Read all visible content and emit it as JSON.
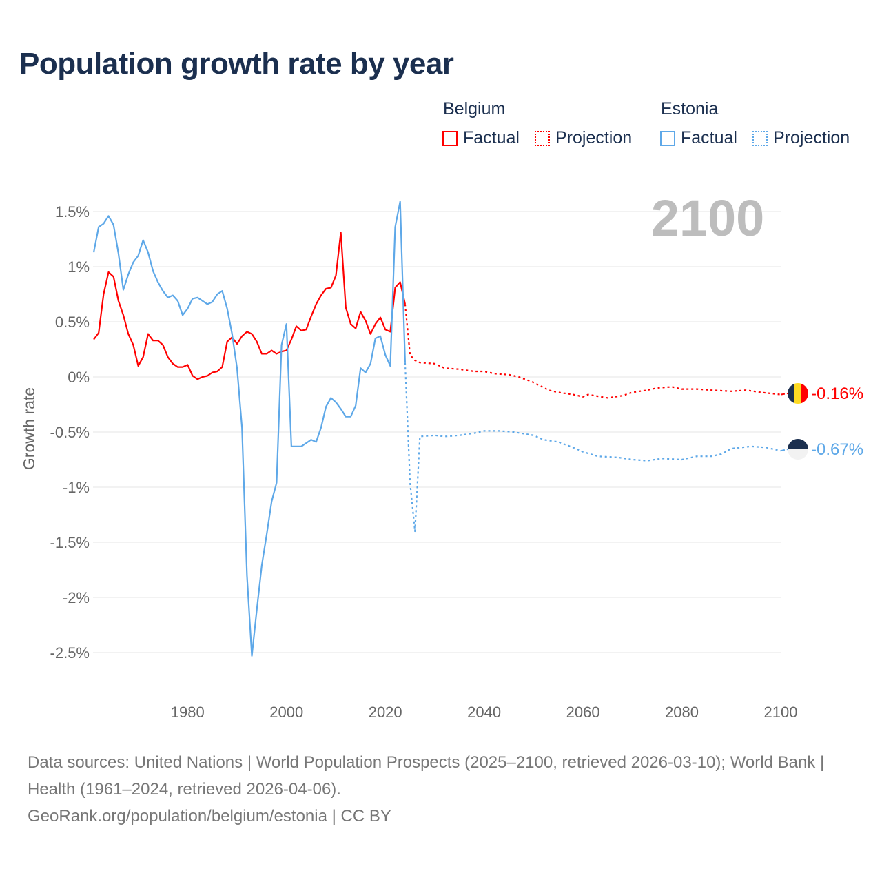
{
  "title": "Population growth rate by year",
  "legend": {
    "groups": [
      {
        "country": "Belgium",
        "factual": "Factual",
        "projection": "Projection",
        "color": "#ff0000"
      },
      {
        "country": "Estonia",
        "factual": "Factual",
        "projection": "Projection",
        "color": "#5ea8e8"
      }
    ]
  },
  "year_display": "2100",
  "end_labels": {
    "belgium": "-0.16%",
    "estonia": "-0.67%"
  },
  "footer": {
    "sources": "Data sources: United Nations | World Population Prospects (2025–2100, retrieved 2026-03-10); World Bank | Health (1961–2024, retrieved 2026-04-06).",
    "credit": "GeoRank.org/population/belgium/estonia | CC BY"
  },
  "chart_data": {
    "type": "line",
    "title": "Population growth rate by year",
    "xlabel": "",
    "ylabel": "Growth rate",
    "xlim": [
      1961,
      2100
    ],
    "ylim": [
      -2.5,
      1.5
    ],
    "xticks": [
      "1980",
      "2000",
      "2020",
      "2040",
      "2060",
      "2080",
      "2100"
    ],
    "xtick_values": [
      1980,
      2000,
      2020,
      2040,
      2060,
      2080,
      2100
    ],
    "yticks": [
      "1.5%",
      "1%",
      "0.5%",
      "0%",
      "-0.5%",
      "-1%",
      "-1.5%",
      "-2%",
      "-2.5%"
    ],
    "ytick_values": [
      1.5,
      1,
      0.5,
      0,
      -0.5,
      -1,
      -1.5,
      -2,
      -2.5
    ],
    "grid": true,
    "legend_position": "top-right",
    "series": [
      {
        "name": "Belgium Factual",
        "color": "#ff0000",
        "style": "solid",
        "x": [
          1961,
          1962,
          1963,
          1964,
          1965,
          1966,
          1967,
          1968,
          1969,
          1970,
          1971,
          1972,
          1973,
          1974,
          1975,
          1976,
          1977,
          1978,
          1979,
          1980,
          1981,
          1982,
          1983,
          1984,
          1985,
          1986,
          1987,
          1988,
          1989,
          1990,
          1991,
          1992,
          1993,
          1994,
          1995,
          1996,
          1997,
          1998,
          1999,
          2000,
          2001,
          2002,
          2003,
          2004,
          2005,
          2006,
          2007,
          2008,
          2009,
          2010,
          2011,
          2012,
          2013,
          2014,
          2015,
          2016,
          2017,
          2018,
          2019,
          2020,
          2021,
          2022,
          2023,
          2024
        ],
        "y": [
          0.34,
          0.4,
          0.75,
          0.95,
          0.91,
          0.69,
          0.56,
          0.39,
          0.29,
          0.1,
          0.18,
          0.39,
          0.33,
          0.33,
          0.29,
          0.18,
          0.12,
          0.09,
          0.09,
          0.11,
          0.01,
          -0.02,
          0.0,
          0.01,
          0.04,
          0.05,
          0.09,
          0.32,
          0.36,
          0.3,
          0.37,
          0.41,
          0.39,
          0.32,
          0.21,
          0.21,
          0.24,
          0.21,
          0.23,
          0.24,
          0.34,
          0.46,
          0.42,
          0.43,
          0.55,
          0.66,
          0.74,
          0.8,
          0.81,
          0.92,
          1.31,
          0.63,
          0.48,
          0.44,
          0.59,
          0.51,
          0.39,
          0.48,
          0.54,
          0.43,
          0.41,
          0.81,
          0.86,
          0.66
        ]
      },
      {
        "name": "Belgium Projection",
        "color": "#ff0000",
        "style": "dotted",
        "x": [
          2024,
          2025,
          2026,
          2027,
          2030,
          2032,
          2035,
          2038,
          2040,
          2042,
          2045,
          2047,
          2050,
          2053,
          2055,
          2058,
          2060,
          2061,
          2065,
          2068,
          2070,
          2073,
          2075,
          2078,
          2080,
          2083,
          2086,
          2090,
          2093,
          2096,
          2100
        ],
        "y": [
          0.66,
          0.2,
          0.15,
          0.13,
          0.12,
          0.08,
          0.07,
          0.05,
          0.05,
          0.03,
          0.02,
          0.0,
          -0.05,
          -0.12,
          -0.14,
          -0.16,
          -0.18,
          -0.16,
          -0.19,
          -0.17,
          -0.14,
          -0.12,
          -0.1,
          -0.09,
          -0.11,
          -0.11,
          -0.12,
          -0.13,
          -0.12,
          -0.14,
          -0.16
        ]
      },
      {
        "name": "Estonia Factual",
        "color": "#5ea8e8",
        "style": "solid",
        "x": [
          1961,
          1962,
          1963,
          1964,
          1965,
          1966,
          1967,
          1968,
          1969,
          1970,
          1971,
          1972,
          1973,
          1974,
          1975,
          1976,
          1977,
          1978,
          1979,
          1980,
          1981,
          1982,
          1983,
          1984,
          1985,
          1986,
          1987,
          1988,
          1989,
          1990,
          1991,
          1992,
          1993,
          1994,
          1995,
          1996,
          1997,
          1998,
          1999,
          2000,
          2001,
          2002,
          2003,
          2004,
          2005,
          2006,
          2007,
          2008,
          2009,
          2010,
          2011,
          2012,
          2013,
          2014,
          2015,
          2016,
          2017,
          2018,
          2019,
          2020,
          2021,
          2022,
          2023,
          2024
        ],
        "y": [
          1.13,
          1.36,
          1.39,
          1.46,
          1.38,
          1.12,
          0.79,
          0.93,
          1.04,
          1.1,
          1.24,
          1.13,
          0.96,
          0.86,
          0.78,
          0.72,
          0.74,
          0.69,
          0.56,
          0.62,
          0.71,
          0.72,
          0.69,
          0.66,
          0.68,
          0.75,
          0.78,
          0.62,
          0.39,
          0.08,
          -0.46,
          -1.8,
          -2.53,
          -2.11,
          -1.71,
          -1.43,
          -1.13,
          -0.96,
          0.29,
          0.48,
          -0.63,
          -0.63,
          -0.63,
          -0.6,
          -0.57,
          -0.59,
          -0.46,
          -0.27,
          -0.19,
          -0.23,
          -0.29,
          -0.36,
          -0.36,
          -0.26,
          0.08,
          0.04,
          0.12,
          0.35,
          0.37,
          0.2,
          0.1,
          1.36,
          1.59,
          0.13
        ]
      },
      {
        "name": "Estonia Projection",
        "color": "#5ea8e8",
        "style": "dotted",
        "x": [
          2024,
          2025,
          2026,
          2027,
          2030,
          2032,
          2035,
          2038,
          2040,
          2043,
          2046,
          2050,
          2052,
          2055,
          2058,
          2060,
          2063,
          2067,
          2070,
          2073,
          2076,
          2080,
          2083,
          2086,
          2088,
          2090,
          2094,
          2097,
          2100
        ],
        "y": [
          0.13,
          -0.96,
          -1.4,
          -0.54,
          -0.53,
          -0.54,
          -0.53,
          -0.51,
          -0.49,
          -0.49,
          -0.5,
          -0.53,
          -0.57,
          -0.59,
          -0.64,
          -0.68,
          -0.72,
          -0.73,
          -0.75,
          -0.76,
          -0.74,
          -0.75,
          -0.72,
          -0.72,
          -0.7,
          -0.65,
          -0.63,
          -0.64,
          -0.67
        ]
      }
    ]
  }
}
